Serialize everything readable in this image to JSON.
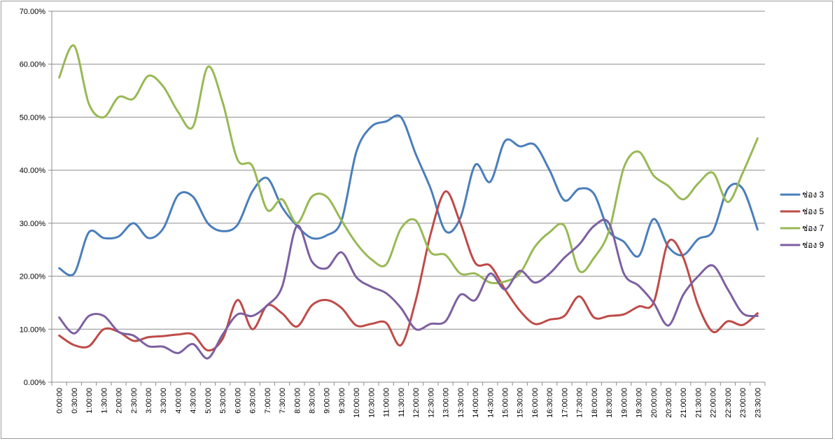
{
  "chart_data": {
    "type": "line",
    "title": "",
    "xlabel": "",
    "ylabel": "",
    "ylim": [
      0,
      0.7
    ],
    "y_ticks": [
      "0.00%",
      "10.00%",
      "20.00%",
      "30.00%",
      "40.00%",
      "50.00%",
      "60.00%",
      "70.00%"
    ],
    "grid": "horizontal",
    "legend_position": "right",
    "x": [
      "0:00:00",
      "0:30:00",
      "1:00:00",
      "1:30:00",
      "2:00:00",
      "2:30:00",
      "3:00:00",
      "3:30:00",
      "4:00:00",
      "4:30:00",
      "5:00:00",
      "5:30:00",
      "6:00:00",
      "6:30:00",
      "7:00:00",
      "7:30:00",
      "8:00:00",
      "8:30:00",
      "9:00:00",
      "9:30:00",
      "10:00:00",
      "10:30:00",
      "11:00:00",
      "11:30:00",
      "12:00:00",
      "12:30:00",
      "13:00:00",
      "13:30:00",
      "14:00:00",
      "14:30:00",
      "15:00:00",
      "15:30:00",
      "16:00:00",
      "16:30:00",
      "17:00:00",
      "17:30:00",
      "18:00:00",
      "18:30:00",
      "19:00:00",
      "19:30:00",
      "20:00:00",
      "20:30:00",
      "21:00:00",
      "21:30:00",
      "22:00:00",
      "22:30:00",
      "23:00:00",
      "23:30:00"
    ],
    "series": [
      {
        "name": "ช่อง 3",
        "color": "#4a7ebb",
        "values": [
          0.215,
          0.205,
          0.283,
          0.272,
          0.275,
          0.3,
          0.272,
          0.29,
          0.353,
          0.35,
          0.3,
          0.285,
          0.297,
          0.36,
          0.385,
          0.33,
          0.295,
          0.272,
          0.277,
          0.305,
          0.435,
          0.482,
          0.492,
          0.5,
          0.43,
          0.365,
          0.285,
          0.31,
          0.41,
          0.378,
          0.455,
          0.445,
          0.448,
          0.4,
          0.343,
          0.365,
          0.355,
          0.285,
          0.265,
          0.238,
          0.308,
          0.255,
          0.24,
          0.27,
          0.285,
          0.365,
          0.365,
          0.288
        ]
      },
      {
        "name": "ช่อง 5",
        "color": "#be4b48",
        "values": [
          0.088,
          0.07,
          0.068,
          0.1,
          0.095,
          0.078,
          0.085,
          0.087,
          0.09,
          0.09,
          0.06,
          0.082,
          0.155,
          0.1,
          0.145,
          0.13,
          0.105,
          0.145,
          0.155,
          0.14,
          0.107,
          0.11,
          0.112,
          0.07,
          0.155,
          0.28,
          0.36,
          0.3,
          0.225,
          0.22,
          0.175,
          0.135,
          0.11,
          0.118,
          0.125,
          0.162,
          0.122,
          0.125,
          0.128,
          0.143,
          0.15,
          0.265,
          0.235,
          0.145,
          0.095,
          0.115,
          0.108,
          0.13
        ]
      },
      {
        "name": "ช่อง 7",
        "color": "#98b954",
        "values": [
          0.575,
          0.635,
          0.525,
          0.5,
          0.538,
          0.535,
          0.578,
          0.558,
          0.51,
          0.482,
          0.595,
          0.528,
          0.42,
          0.408,
          0.325,
          0.345,
          0.3,
          0.35,
          0.35,
          0.305,
          0.262,
          0.232,
          0.222,
          0.29,
          0.305,
          0.245,
          0.24,
          0.205,
          0.205,
          0.188,
          0.19,
          0.205,
          0.255,
          0.283,
          0.295,
          0.21,
          0.235,
          0.285,
          0.405,
          0.435,
          0.39,
          0.37,
          0.345,
          0.375,
          0.395,
          0.34,
          0.395,
          0.46
        ]
      },
      {
        "name": "ช่อง 9",
        "color": "#7d5fa0",
        "values": [
          0.122,
          0.092,
          0.125,
          0.125,
          0.095,
          0.088,
          0.068,
          0.067,
          0.055,
          0.072,
          0.045,
          0.09,
          0.128,
          0.125,
          0.145,
          0.18,
          0.295,
          0.228,
          0.215,
          0.245,
          0.198,
          0.18,
          0.168,
          0.14,
          0.1,
          0.11,
          0.115,
          0.165,
          0.155,
          0.205,
          0.175,
          0.21,
          0.188,
          0.205,
          0.235,
          0.26,
          0.295,
          0.3,
          0.205,
          0.182,
          0.15,
          0.107,
          0.165,
          0.2,
          0.22,
          0.175,
          0.13,
          0.125
        ]
      }
    ]
  }
}
